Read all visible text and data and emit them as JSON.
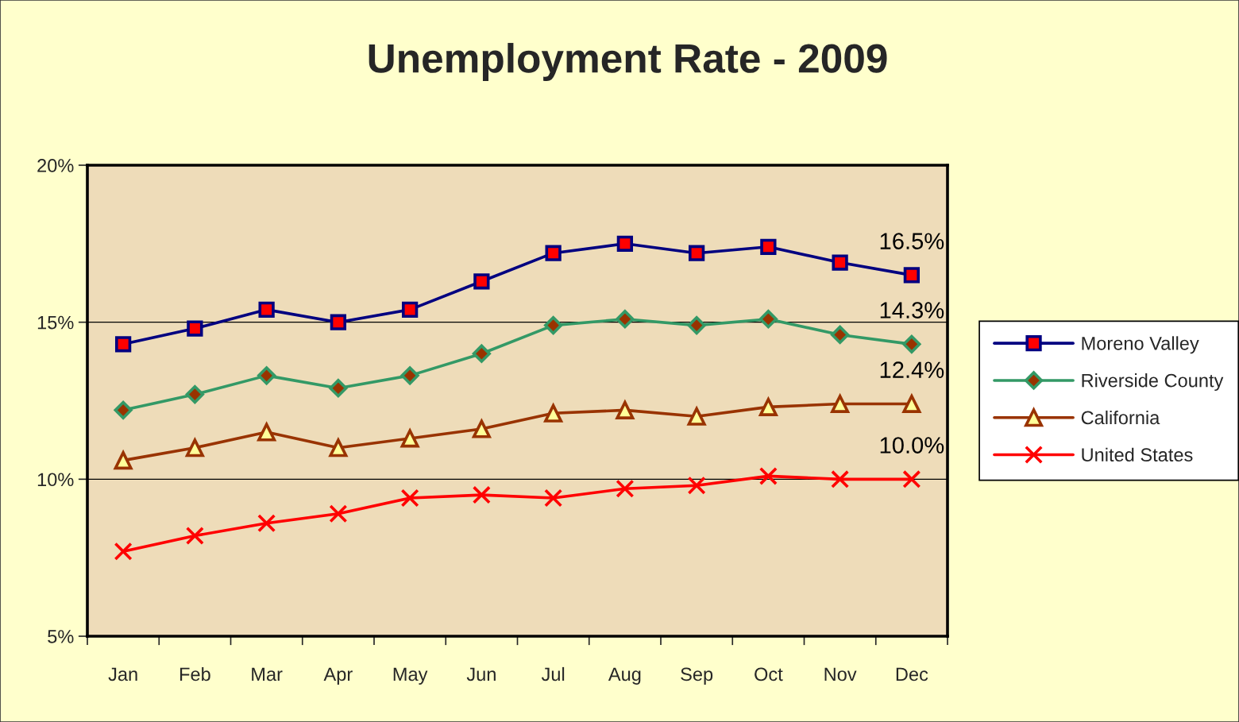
{
  "chart_data": {
    "type": "line",
    "title": "Unemployment Rate - 2009",
    "categories": [
      "Jan",
      "Feb",
      "Mar",
      "Apr",
      "May",
      "Jun",
      "Jul",
      "Aug",
      "Sep",
      "Oct",
      "Nov",
      "Dec"
    ],
    "series": [
      {
        "name": "Moreno Valley",
        "color": "#000080",
        "marker": "square",
        "values": [
          14.3,
          14.8,
          15.4,
          15.0,
          15.4,
          16.3,
          17.2,
          17.5,
          17.2,
          17.4,
          16.9,
          16.5
        ],
        "value_labels": [
          null,
          null,
          null,
          null,
          null,
          null,
          null,
          null,
          null,
          null,
          null,
          "16.5%"
        ]
      },
      {
        "name": "Riverside County",
        "color": "#339966",
        "marker": "diamond",
        "values": [
          12.2,
          12.7,
          13.3,
          12.9,
          13.3,
          14.0,
          14.9,
          15.1,
          14.9,
          15.1,
          14.6,
          14.3
        ],
        "value_labels": [
          null,
          null,
          null,
          null,
          null,
          null,
          null,
          null,
          null,
          null,
          null,
          "14.3%"
        ]
      },
      {
        "name": "California",
        "color": "#993300",
        "marker": "triangle",
        "values": [
          10.6,
          11.0,
          11.5,
          11.0,
          11.3,
          11.6,
          12.1,
          12.2,
          12.0,
          12.3,
          12.4,
          12.4
        ],
        "value_labels": [
          null,
          null,
          null,
          null,
          null,
          null,
          null,
          null,
          null,
          null,
          null,
          "12.4%"
        ]
      },
      {
        "name": "United States",
        "color": "#ff0000",
        "marker": "cross",
        "values": [
          7.7,
          8.2,
          8.6,
          8.9,
          9.4,
          9.5,
          9.4,
          9.7,
          9.8,
          10.1,
          10.0,
          10.0
        ],
        "value_labels": [
          null,
          null,
          null,
          null,
          null,
          null,
          null,
          null,
          null,
          null,
          null,
          "10.0%"
        ]
      }
    ],
    "ylim": [
      5,
      20
    ],
    "yticks": [
      {
        "value": 5,
        "label": "5%"
      },
      {
        "value": 10,
        "label": "10%"
      },
      {
        "value": 15,
        "label": "15%"
      },
      {
        "value": 20,
        "label": "20%"
      }
    ],
    "grid": "y",
    "legend": "right"
  }
}
